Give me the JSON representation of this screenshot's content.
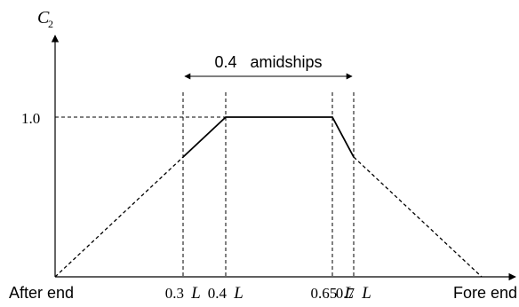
{
  "chart_data": {
    "type": "line",
    "ylabel": "C",
    "ylabel_subscript": "2",
    "x": [
      0,
      0.3,
      0.4,
      0.65,
      0.7,
      1.0
    ],
    "series": [
      {
        "values": [
          0,
          0.75,
          1.0,
          1.0,
          0.75,
          0
        ],
        "solid_segment": [
          0.3,
          0.7
        ]
      }
    ],
    "xlim": [
      0,
      1.05
    ],
    "ylim": [
      0,
      1.2
    ],
    "grid": false,
    "y_ticks": [
      {
        "value": 1.0,
        "label": "1.0"
      }
    ],
    "x_ticks": [
      {
        "value": 0.3,
        "label": "0.3",
        "suffix": "L"
      },
      {
        "value": 0.4,
        "label": "0.4",
        "suffix": "L"
      },
      {
        "value": 0.65,
        "label": "0.65",
        "suffix": "L"
      },
      {
        "value": 0.7,
        "label": "0.7",
        "suffix": "L"
      }
    ],
    "guides_vertical": [
      0.3,
      0.4,
      0.65,
      0.7
    ],
    "guide_horizontal": 1.0,
    "span_annotation": {
      "from": 0.3,
      "to": 0.7,
      "label": "0.4   amidships"
    },
    "end_labels": {
      "left": "After end",
      "right": "Fore end"
    }
  }
}
